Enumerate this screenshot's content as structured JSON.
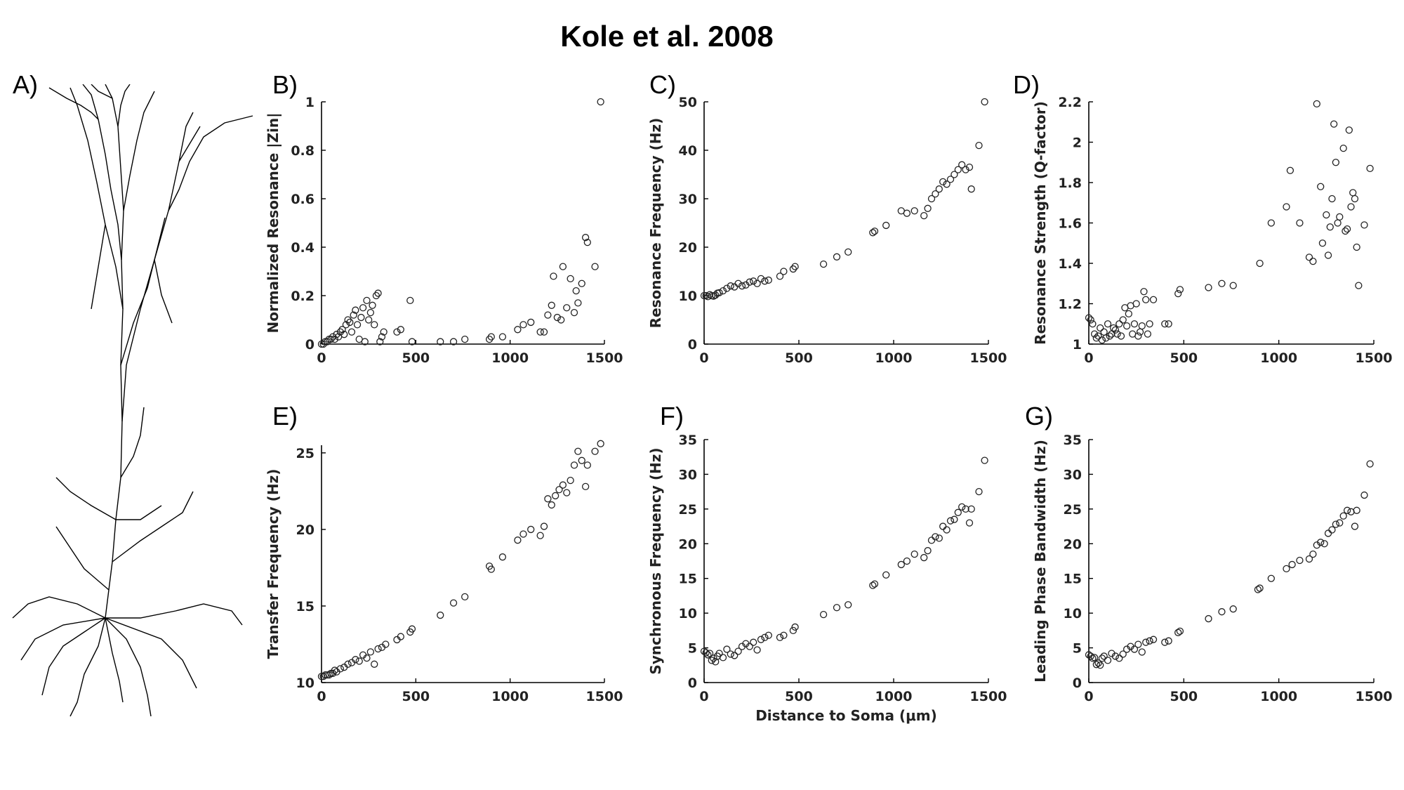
{
  "title": "Kole et al. 2008",
  "panel_labels": {
    "A": "A)",
    "B": "B)",
    "C": "C)",
    "D": "D)",
    "E": "E)",
    "F": "F)",
    "G": "G)"
  },
  "chart_data": [
    {
      "id": "B",
      "type": "scatter",
      "ylabel": "Normalized Resonance |Zin|",
      "xlabel": "",
      "xlim": [
        0,
        1500
      ],
      "ylim": [
        0,
        1
      ],
      "xticks": [
        0,
        500,
        1000,
        1500
      ],
      "yticks": [
        0,
        0.2,
        0.4,
        0.6,
        0.8,
        1
      ],
      "yticklabels": [
        "0",
        "0.2",
        "0.4",
        "0.6",
        "0.8",
        "1"
      ],
      "x": [
        0,
        10,
        20,
        30,
        40,
        50,
        60,
        70,
        80,
        90,
        100,
        110,
        120,
        130,
        140,
        150,
        160,
        170,
        180,
        190,
        200,
        210,
        220,
        230,
        240,
        250,
        260,
        270,
        280,
        290,
        300,
        310,
        320,
        330,
        400,
        420,
        470,
        480,
        630,
        700,
        760,
        890,
        900,
        960,
        1040,
        1070,
        1110,
        1160,
        1180,
        1200,
        1220,
        1230,
        1250,
        1270,
        1280,
        1300,
        1320,
        1340,
        1350,
        1360,
        1380,
        1400,
        1410,
        1450,
        1480
      ],
      "y": [
        0,
        0,
        0.01,
        0.01,
        0.02,
        0.02,
        0.03,
        0.02,
        0.04,
        0.03,
        0.05,
        0.06,
        0.04,
        0.08,
        0.1,
        0.09,
        0.05,
        0.12,
        0.14,
        0.08,
        0.02,
        0.11,
        0.15,
        0.01,
        0.18,
        0.1,
        0.13,
        0.16,
        0.08,
        0.2,
        0.21,
        0.01,
        0.03,
        0.05,
        0.05,
        0.06,
        0.18,
        0.01,
        0.01,
        0.01,
        0.02,
        0.02,
        0.03,
        0.03,
        0.06,
        0.08,
        0.09,
        0.05,
        0.05,
        0.12,
        0.16,
        0.28,
        0.11,
        0.1,
        0.32,
        0.15,
        0.27,
        0.13,
        0.22,
        0.17,
        0.25,
        0.44,
        0.42,
        0.32,
        1.0
      ]
    },
    {
      "id": "C",
      "type": "scatter",
      "ylabel": "Resonance Frequency (Hz)",
      "xlabel": "",
      "xlim": [
        0,
        1500
      ],
      "ylim": [
        0,
        50
      ],
      "xticks": [
        0,
        500,
        1000,
        1500
      ],
      "yticks": [
        0,
        10,
        20,
        30,
        40,
        50
      ],
      "yticklabels": [
        "0",
        "10",
        "20",
        "30",
        "40",
        "50"
      ],
      "x": [
        0,
        10,
        20,
        30,
        40,
        50,
        60,
        70,
        80,
        100,
        120,
        140,
        160,
        180,
        200,
        220,
        240,
        260,
        280,
        300,
        320,
        340,
        400,
        420,
        470,
        480,
        630,
        700,
        760,
        890,
        900,
        960,
        1040,
        1070,
        1110,
        1160,
        1180,
        1200,
        1220,
        1240,
        1260,
        1280,
        1300,
        1320,
        1340,
        1360,
        1380,
        1400,
        1410,
        1450,
        1480
      ],
      "y": [
        10,
        10,
        9.8,
        10.2,
        10,
        9.9,
        10.1,
        10.5,
        10.6,
        11,
        11.5,
        12,
        11.8,
        12.5,
        12,
        12.2,
        12.8,
        13,
        12.5,
        13.5,
        13,
        13.2,
        14,
        15,
        15.5,
        16,
        16.5,
        18,
        19,
        23,
        23.3,
        24.5,
        27.5,
        27,
        27.5,
        26.5,
        28,
        30,
        31,
        32,
        33.5,
        33,
        34,
        35,
        36,
        37,
        36,
        36.5,
        32,
        41,
        50
      ]
    },
    {
      "id": "D",
      "type": "scatter",
      "ylabel": "Resonance Strength (Q-factor)",
      "xlabel": "",
      "xlim": [
        0,
        1500
      ],
      "ylim": [
        1,
        2.2
      ],
      "xticks": [
        0,
        500,
        1000,
        1500
      ],
      "yticks": [
        1,
        1.2,
        1.4,
        1.6,
        1.8,
        2,
        2.2
      ],
      "yticklabels": [
        "1",
        "1.2",
        "1.4",
        "1.6",
        "1.8",
        "2",
        "2.2"
      ],
      "x": [
        0,
        10,
        20,
        30,
        40,
        50,
        60,
        70,
        80,
        90,
        100,
        110,
        120,
        130,
        140,
        150,
        160,
        170,
        180,
        190,
        200,
        210,
        220,
        230,
        240,
        250,
        260,
        270,
        280,
        290,
        300,
        310,
        320,
        340,
        400,
        420,
        470,
        480,
        630,
        700,
        760,
        900,
        960,
        1040,
        1060,
        1110,
        1160,
        1180,
        1200,
        1220,
        1230,
        1250,
        1260,
        1270,
        1280,
        1290,
        1300,
        1310,
        1320,
        1340,
        1350,
        1360,
        1370,
        1380,
        1390,
        1400,
        1410,
        1420,
        1450,
        1480
      ],
      "y": [
        1.13,
        1.12,
        1.1,
        1.05,
        1.03,
        1.04,
        1.08,
        1.02,
        1.06,
        1.03,
        1.1,
        1.04,
        1.05,
        1.08,
        1.07,
        1.05,
        1.1,
        1.04,
        1.12,
        1.18,
        1.09,
        1.15,
        1.19,
        1.05,
        1.1,
        1.2,
        1.04,
        1.06,
        1.09,
        1.26,
        1.22,
        1.05,
        1.1,
        1.22,
        1.1,
        1.1,
        1.25,
        1.27,
        1.28,
        1.3,
        1.29,
        1.4,
        1.6,
        1.68,
        1.86,
        1.6,
        1.43,
        1.41,
        2.19,
        1.78,
        1.5,
        1.64,
        1.44,
        1.58,
        1.72,
        2.09,
        1.9,
        1.6,
        1.63,
        1.97,
        1.56,
        1.57,
        2.06,
        1.68,
        1.75,
        1.72,
        1.48,
        1.29,
        1.59,
        1.87
      ]
    },
    {
      "id": "E",
      "type": "scatter",
      "ylabel": "Transfer Frequency (Hz)",
      "xlabel": "",
      "xlim": [
        0,
        1500
      ],
      "ylim": [
        10,
        25.5
      ],
      "xticks": [
        0,
        500,
        1000,
        1500
      ],
      "yticks": [
        10,
        15,
        20,
        25
      ],
      "yticklabels": [
        "10",
        "15",
        "20",
        "25"
      ],
      "x": [
        0,
        10,
        20,
        30,
        40,
        50,
        60,
        70,
        80,
        100,
        120,
        140,
        160,
        180,
        200,
        220,
        240,
        260,
        280,
        300,
        320,
        340,
        400,
        420,
        470,
        480,
        630,
        700,
        760,
        890,
        900,
        960,
        1040,
        1070,
        1110,
        1160,
        1180,
        1200,
        1220,
        1240,
        1260,
        1280,
        1300,
        1320,
        1340,
        1360,
        1380,
        1400,
        1410,
        1450,
        1480
      ],
      "y": [
        10.4,
        10.4,
        10.5,
        10.5,
        10.5,
        10.6,
        10.6,
        10.8,
        10.7,
        10.9,
        11,
        11.2,
        11.3,
        11.5,
        11.4,
        11.8,
        11.6,
        12,
        11.2,
        12.2,
        12.3,
        12.5,
        12.8,
        13,
        13.3,
        13.5,
        14.4,
        15.2,
        15.6,
        17.6,
        17.4,
        18.2,
        19.3,
        19.7,
        20,
        19.6,
        20.2,
        22,
        21.6,
        22.2,
        22.6,
        22.9,
        22.4,
        23.2,
        24.2,
        25.1,
        24.5,
        22.8,
        24.2,
        25.1,
        25.6
      ]
    },
    {
      "id": "F",
      "type": "scatter",
      "ylabel": "Synchronous Frequency (Hz)",
      "xlabel": "Distance to Soma (μm)",
      "xlim": [
        0,
        1500
      ],
      "ylim": [
        0,
        35
      ],
      "xticks": [
        0,
        500,
        1000,
        1500
      ],
      "yticks": [
        0,
        5,
        10,
        15,
        20,
        25,
        30,
        35
      ],
      "yticklabels": [
        "0",
        "5",
        "10",
        "15",
        "20",
        "25",
        "30",
        "35"
      ],
      "x": [
        0,
        10,
        20,
        30,
        40,
        50,
        60,
        70,
        80,
        100,
        120,
        140,
        160,
        180,
        200,
        220,
        240,
        260,
        280,
        300,
        320,
        340,
        400,
        420,
        470,
        480,
        630,
        700,
        760,
        890,
        900,
        960,
        1040,
        1070,
        1110,
        1160,
        1180,
        1200,
        1220,
        1240,
        1260,
        1280,
        1300,
        1320,
        1340,
        1360,
        1380,
        1400,
        1410,
        1450,
        1480
      ],
      "y": [
        4.5,
        4.3,
        4,
        4.2,
        3.2,
        3.5,
        3,
        3.8,
        4.2,
        3.6,
        4.8,
        4.1,
        3.9,
        4.5,
        5.2,
        5.6,
        5.2,
        5.8,
        4.7,
        6.2,
        6.5,
        6.8,
        6.5,
        6.8,
        7.5,
        8,
        9.8,
        10.8,
        11.2,
        14,
        14.2,
        15.5,
        17,
        17.5,
        18.5,
        18,
        19,
        20.5,
        21,
        20.8,
        22.5,
        22,
        23.3,
        23.5,
        24.5,
        25.3,
        25,
        23,
        25,
        27.5,
        32
      ]
    },
    {
      "id": "G",
      "type": "scatter",
      "ylabel": "Leading Phase Bandwidth (Hz)",
      "xlabel": "",
      "xlim": [
        0,
        1500
      ],
      "ylim": [
        0,
        35
      ],
      "xticks": [
        0,
        500,
        1000,
        1500
      ],
      "yticks": [
        0,
        5,
        10,
        15,
        20,
        25,
        30,
        35
      ],
      "yticklabels": [
        "0",
        "5",
        "10",
        "15",
        "20",
        "25",
        "30",
        "35"
      ],
      "x": [
        0,
        10,
        20,
        30,
        40,
        50,
        60,
        70,
        80,
        100,
        120,
        140,
        160,
        180,
        200,
        220,
        240,
        260,
        280,
        300,
        320,
        340,
        400,
        420,
        470,
        480,
        630,
        700,
        760,
        890,
        900,
        960,
        1040,
        1070,
        1110,
        1160,
        1180,
        1200,
        1220,
        1240,
        1260,
        1280,
        1300,
        1320,
        1340,
        1360,
        1380,
        1400,
        1410,
        1450,
        1480
      ],
      "y": [
        4,
        3.8,
        3.5,
        3.6,
        2.6,
        2.8,
        2.5,
        3.5,
        3.8,
        3.2,
        4.2,
        3.8,
        3.5,
        4.1,
        4.8,
        5.2,
        4.8,
        5.5,
        4.4,
        5.8,
        6,
        6.2,
        5.8,
        6,
        7.2,
        7.4,
        9.2,
        10.2,
        10.6,
        13.4,
        13.6,
        15,
        16.4,
        17,
        17.6,
        17.8,
        18.5,
        19.8,
        20.2,
        20,
        21.5,
        22,
        22.8,
        23,
        24,
        24.8,
        24.6,
        22.5,
        24.8,
        27,
        31.5
      ]
    }
  ]
}
